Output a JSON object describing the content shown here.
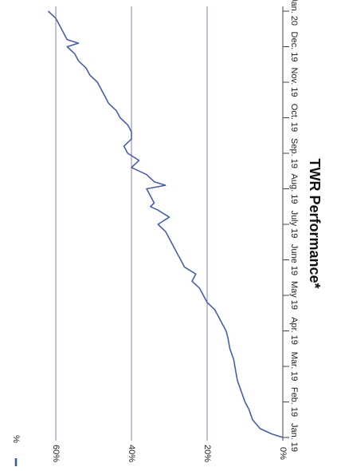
{
  "chart_data": {
    "type": "line",
    "title": "TWR Performance*",
    "xlabel": "",
    "ylabel": "",
    "orientation": "rotated-90-clockwise",
    "y_tick_labels": [
      "0%",
      "20%",
      "40%",
      "60%"
    ],
    "ylim": [
      0,
      60
    ],
    "x_tick_labels": [
      "Jan. 19",
      "Feb. 19",
      "Mar. 19",
      "Apr. 19",
      "May 19",
      "June 19",
      "July 19",
      "Aug. 19",
      "Sep. 19",
      "Oct. 19",
      "Nov. 19",
      "Dec. 19",
      "Jan. 20"
    ],
    "grid": "horizontal",
    "legend": {
      "label": "%",
      "placement": "top-left",
      "color": "#3355aa"
    },
    "series": [
      {
        "name": "%",
        "color": "#4a5ea8",
        "x": [
          0,
          0.1,
          0.25,
          0.5,
          0.8,
          1.0,
          1.3,
          1.6,
          1.9,
          2.2,
          2.5,
          2.8,
          3.0,
          3.2,
          3.4,
          3.6,
          3.8,
          4.0,
          4.2,
          4.4,
          4.6,
          4.8,
          5.0,
          5.2,
          5.4,
          5.6,
          5.8,
          6.0,
          6.2,
          6.4,
          6.5,
          6.6,
          6.8,
          7.0,
          7.1,
          7.2,
          7.4,
          7.6,
          7.8,
          8.0,
          8.2,
          8.4,
          8.6,
          8.8,
          9.0,
          9.2,
          9.4,
          9.6,
          9.8,
          10.0,
          10.2,
          10.4,
          10.6,
          10.8,
          11.0,
          11.1,
          11.2,
          11.4,
          11.6,
          11.8,
          12.0
        ],
        "y": [
          0,
          3,
          6,
          8,
          9,
          10,
          11,
          12,
          12.5,
          13,
          14,
          14.5,
          15,
          16,
          17,
          18,
          20,
          21,
          22,
          24,
          23,
          26,
          27,
          28,
          29,
          30,
          31,
          33,
          30,
          33,
          35,
          34,
          35,
          36,
          31,
          34,
          36,
          40,
          38,
          41,
          42,
          40,
          40,
          41,
          43,
          44,
          46,
          47,
          48,
          49,
          51,
          52,
          54,
          55,
          57,
          54,
          57,
          58,
          59,
          60,
          62
        ]
      }
    ]
  }
}
